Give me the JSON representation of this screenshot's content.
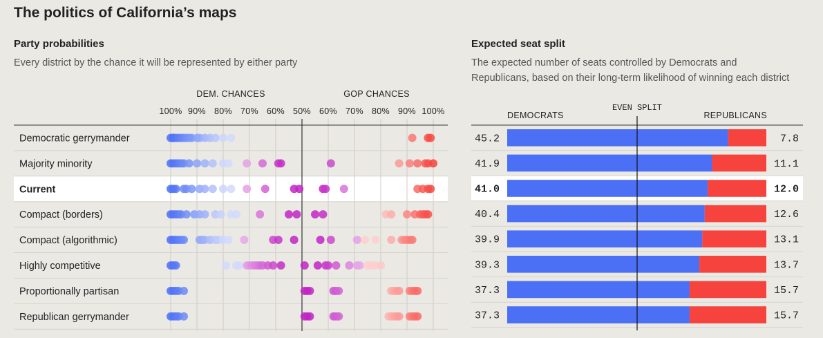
{
  "title": "The politics of California’s maps",
  "left": {
    "title": "Party probabilities",
    "subtitle": "Every district by the chance it will be represented by either party",
    "dem_label": "DEM. CHANCES",
    "gop_label": "GOP CHANCES",
    "ticks": [
      "100%",
      "90%",
      "80%",
      "70%",
      "60%",
      "50%",
      "60%",
      "70%",
      "80%",
      "90%",
      "100%"
    ]
  },
  "right": {
    "title": "Expected seat split",
    "subtitle_line1": "The expected number of seats controlled by Democrats and",
    "subtitle_line2": "Republicans, based on their long-term likelihood of winning each district",
    "dem_header": "DEMOCRATS",
    "even_label": "EVEN SPLIT",
    "rep_header": "REPUBLICANS"
  },
  "colors": {
    "dem": "#4b6ff5",
    "gop": "#f7433d",
    "swing": "#c126c4",
    "highlight_row": "#ffffff",
    "background": "#ebe9e4"
  },
  "chart_data": [
    {
      "type": "scatter",
      "title": "Party probabilities",
      "x_axis": "Probability of representation: Democratic (left) to Republican (right), 50% in the middle",
      "xlim": [
        -100,
        100
      ],
      "categories": [
        "Democratic gerrymander",
        "Majority minority",
        "Current",
        "Compact (borders)",
        "Compact (algorithmic)",
        "Highly competitive",
        "Proportionally partisan",
        "Republican gerrymander"
      ],
      "highlight": "Current",
      "series": [
        {
          "values": [
            -100,
            -99,
            -99,
            -98,
            -97,
            -96,
            -95,
            -94,
            -93,
            -92,
            -90,
            -89,
            -87,
            -85,
            -83,
            -80,
            -77,
            92,
            98,
            99
          ]
        },
        {
          "values": [
            -100,
            -99,
            -98,
            -97,
            -96,
            -95,
            -93,
            -90,
            -87,
            -84,
            -80,
            -78,
            -71,
            -65,
            -59,
            -58,
            61,
            87,
            91,
            94,
            97,
            98,
            100
          ]
        },
        {
          "values": [
            -100,
            -99,
            -98,
            -95,
            -94,
            -92,
            -89,
            -87,
            -84,
            -80,
            -77,
            -71,
            -64,
            -53,
            -51,
            -42,
            59,
            66,
            94,
            96,
            98,
            99
          ]
        },
        {
          "values": [
            -100,
            -99,
            -98,
            -97,
            -96,
            -94,
            -91,
            -89,
            -87,
            -83,
            -81,
            -77,
            -75,
            -66,
            -55,
            -52,
            55,
            58,
            82,
            84,
            90,
            93,
            95,
            96,
            97,
            98
          ]
        },
        {
          "values": [
            -100,
            -99,
            -98,
            -97,
            -96,
            -95,
            -89,
            -88,
            -87,
            -85,
            -83,
            -82,
            -80,
            -78,
            -72,
            -61,
            -59,
            -53,
            57,
            61,
            71,
            74,
            78,
            84,
            88,
            89,
            90,
            91,
            92
          ]
        },
        {
          "values": [
            -100,
            -99,
            -98,
            -79,
            -75,
            -74,
            -71,
            -70,
            -69,
            -68,
            -67,
            -66,
            -65,
            -63,
            -61,
            -58,
            51,
            56,
            59,
            60,
            63,
            68,
            71,
            72,
            75,
            76,
            77,
            78,
            80
          ]
        },
        {
          "values": [
            -100,
            -99,
            -98,
            -97,
            -95,
            51,
            52,
            53,
            62,
            63,
            64,
            84,
            85,
            86,
            87,
            91,
            92,
            93,
            94
          ]
        },
        {
          "values": [
            -100,
            -99,
            -98,
            -97,
            -95,
            51,
            52,
            53,
            62,
            63,
            64,
            83,
            84,
            85,
            86,
            87,
            91,
            92,
            93,
            94
          ]
        }
      ]
    },
    {
      "type": "bar",
      "title": "Expected seat split",
      "categories": [
        "Democratic gerrymander",
        "Majority minority",
        "Current",
        "Compact (borders)",
        "Compact (algorithmic)",
        "Highly competitive",
        "Proportionally partisan",
        "Republican gerrymander"
      ],
      "series": [
        {
          "name": "DEMOCRATS",
          "values": [
            "45.2",
            "41.9",
            "41.0",
            "40.4",
            "39.9",
            "39.3",
            "37.3",
            "37.3"
          ]
        },
        {
          "name": "REPUBLICANS",
          "values": [
            "7.8",
            "11.1",
            "12.0",
            "12.6",
            "13.1",
            "13.7",
            "15.7",
            "15.7"
          ]
        }
      ],
      "highlight": "Current",
      "even_split": 26.5
    }
  ]
}
